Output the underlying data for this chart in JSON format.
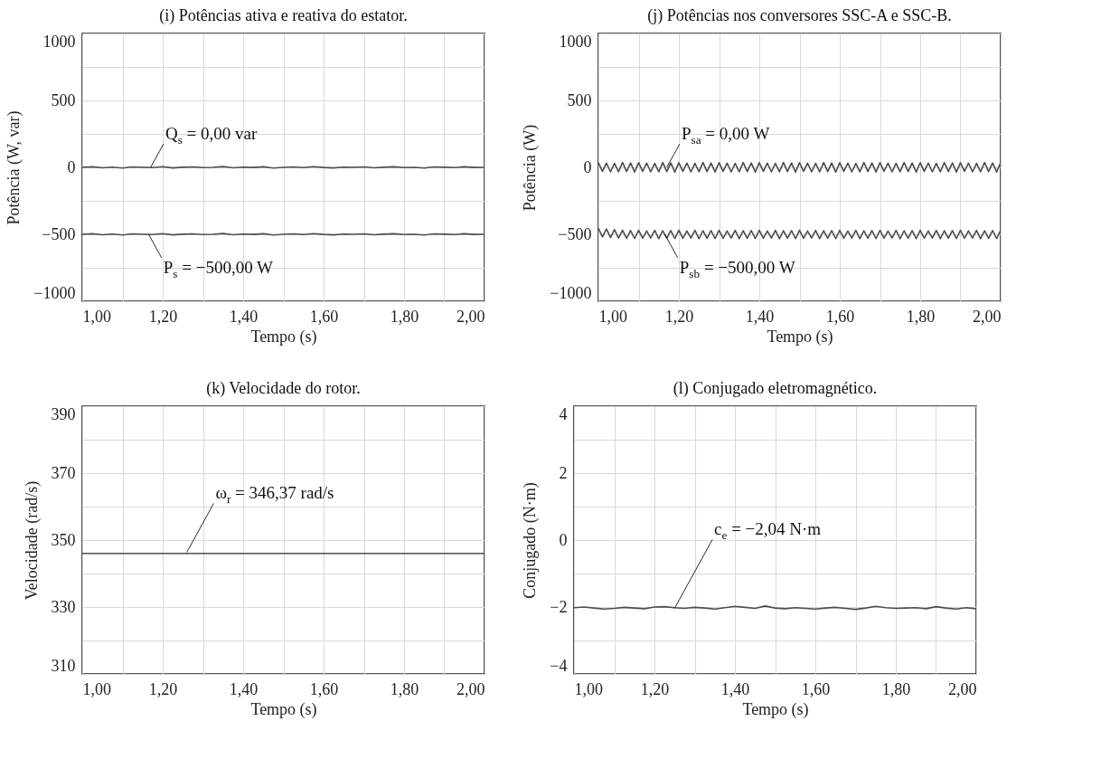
{
  "chart_data": [
    {
      "type": "line",
      "title": "(i) Potências ativa e reativa do estator.",
      "xlabel": "Tempo (s)",
      "ylabel": "Potência (W, var)",
      "x": [
        1.0,
        1.025,
        1.05,
        1.075,
        1.1,
        1.125,
        1.15,
        1.175,
        1.2,
        1.225,
        1.25,
        1.275,
        1.3,
        1.325,
        1.35,
        1.375,
        1.4,
        1.425,
        1.45,
        1.475,
        1.5,
        1.525,
        1.55,
        1.575,
        1.6,
        1.625,
        1.65,
        1.675,
        1.7,
        1.725,
        1.75,
        1.775,
        1.8,
        1.825,
        1.85,
        1.875,
        1.9,
        1.925,
        1.95,
        1.975,
        2.0
      ],
      "series": [
        {
          "color": "#4d4d4d",
          "values": [
            0,
            4,
            -3,
            2,
            -5,
            3,
            0,
            -2,
            5,
            -4,
            1,
            3,
            -2,
            0,
            6,
            -3,
            2,
            -1,
            4,
            -5,
            0,
            3,
            -2,
            5,
            -1,
            -4,
            2,
            0,
            3,
            -3,
            1,
            4,
            -2,
            0,
            -5,
            3,
            1,
            -2,
            4,
            -1,
            0
          ]
        },
        {
          "color": "#4d4d4d",
          "values": [
            -500,
            -496,
            -503,
            -498,
            -505,
            -497,
            -500,
            -502,
            -495,
            -504,
            -499,
            -497,
            -502,
            -500,
            -494,
            -503,
            -498,
            -501,
            -496,
            -505,
            -500,
            -497,
            -502,
            -495,
            -501,
            -504,
            -498,
            -500,
            -497,
            -503,
            -499,
            -496,
            -502,
            -500,
            -505,
            -497,
            -499,
            -502,
            -496,
            -501,
            -500
          ]
        }
      ],
      "annotations": [
        {
          "text": "Q$_{s}$ = 0,00 var",
          "x": 1.17,
          "y": 0
        },
        {
          "text": "P$_{s}$ = −500,00 W",
          "x": 1.165,
          "y": -500
        }
      ],
      "xlim": [
        1,
        2
      ],
      "xticks": [
        {
          "value": 1,
          "label": "1,00"
        },
        {
          "value": 1.1,
          "label": null
        },
        {
          "value": 1.2,
          "label": "1,20"
        },
        {
          "value": 1.3,
          "label": null
        },
        {
          "value": 1.4,
          "label": "1,40"
        },
        {
          "value": 1.5,
          "label": null
        },
        {
          "value": 1.6,
          "label": "1,60"
        },
        {
          "value": 1.7,
          "label": null
        },
        {
          "value": 1.8,
          "label": "1,80"
        },
        {
          "value": 1.9,
          "label": null
        },
        {
          "value": 2,
          "label": "2,00"
        }
      ],
      "ylim": [
        -1000,
        1000
      ],
      "yticks": [
        1000,
        {
          "value": 750,
          "label": null
        },
        500,
        {
          "value": 250,
          "label": null
        },
        0,
        {
          "value": -250,
          "label": null
        },
        -500,
        {
          "value": -750,
          "label": null
        },
        -1000
      ],
      "grid": true
    },
    {
      "type": "line",
      "title": "(j) Potências nos conversores SSC-A e SSC-B.",
      "xlabel": "Tempo (s)",
      "ylabel": "Potência (W)",
      "x": [
        1.0,
        1.01,
        1.02,
        1.03,
        1.04,
        1.05,
        1.06,
        1.07,
        1.08,
        1.09,
        1.1,
        1.11,
        1.12,
        1.13,
        1.14,
        1.15,
        1.16,
        1.17,
        1.18,
        1.19,
        1.2,
        1.21,
        1.22,
        1.23,
        1.24,
        1.25,
        1.26,
        1.27,
        1.28,
        1.29,
        1.3,
        1.31,
        1.32,
        1.33,
        1.34,
        1.35,
        1.36,
        1.37,
        1.38,
        1.39,
        1.4,
        1.41,
        1.42,
        1.43,
        1.44,
        1.45,
        1.46,
        1.47,
        1.48,
        1.49,
        1.5,
        1.51,
        1.52,
        1.53,
        1.54,
        1.55,
        1.56,
        1.57,
        1.58,
        1.59,
        1.6,
        1.61,
        1.62,
        1.63,
        1.64,
        1.65,
        1.66,
        1.67,
        1.68,
        1.69,
        1.7,
        1.71,
        1.72,
        1.73,
        1.74,
        1.75,
        1.76,
        1.77,
        1.78,
        1.79,
        1.8,
        1.81,
        1.82,
        1.83,
        1.84,
        1.85,
        1.86,
        1.87,
        1.88,
        1.89,
        1.9,
        1.91,
        1.92,
        1.93,
        1.94,
        1.95,
        1.96,
        1.97,
        1.98,
        1.99,
        2.0
      ],
      "series": [
        {
          "color": "#4d4d4d",
          "values": [
            35,
            -30,
            32,
            -34,
            30,
            -33,
            36,
            -31,
            33,
            -35,
            35,
            -30,
            32,
            -34,
            30,
            -33,
            36,
            -31,
            33,
            -35,
            35,
            -30,
            32,
            -34,
            30,
            -33,
            36,
            -31,
            33,
            -35,
            35,
            -30,
            32,
            -34,
            30,
            -33,
            36,
            -31,
            33,
            -35,
            35,
            -30,
            32,
            -34,
            30,
            -33,
            36,
            -31,
            33,
            -35,
            35,
            -30,
            32,
            -34,
            30,
            -33,
            36,
            -31,
            33,
            -35,
            35,
            -30,
            32,
            -34,
            30,
            -33,
            36,
            -31,
            33,
            -35,
            35,
            -30,
            32,
            -34,
            30,
            -33,
            36,
            -31,
            33,
            -35,
            35,
            -30,
            32,
            -34,
            30,
            -33,
            36,
            -31,
            33,
            -35,
            35,
            -30,
            32,
            -34,
            30,
            -33,
            36,
            -31,
            33,
            -35,
            35
          ]
        },
        {
          "color": "#4d4d4d",
          "values": [
            -455,
            -520,
            -460,
            -525,
            -465,
            -528,
            -470,
            -530,
            -472,
            -532,
            -470,
            -530,
            -475,
            -528,
            -471,
            -533,
            -473,
            -529,
            -472,
            -532,
            -470,
            -530,
            -475,
            -528,
            -471,
            -533,
            -473,
            -529,
            -472,
            -532,
            -470,
            -530,
            -475,
            -528,
            -471,
            -533,
            -473,
            -529,
            -472,
            -532,
            -470,
            -530,
            -475,
            -528,
            -471,
            -533,
            -473,
            -529,
            -472,
            -532,
            -470,
            -530,
            -475,
            -528,
            -471,
            -533,
            -473,
            -529,
            -472,
            -532,
            -470,
            -530,
            -475,
            -528,
            -471,
            -533,
            -473,
            -529,
            -472,
            -532,
            -470,
            -530,
            -475,
            -528,
            -471,
            -533,
            -473,
            -529,
            -472,
            -532,
            -470,
            -530,
            -475,
            -528,
            -471,
            -533,
            -473,
            -529,
            -472,
            -532,
            -470,
            -530,
            -475,
            -528,
            -471,
            -533,
            -473,
            -529,
            -472,
            -532,
            -470
          ]
        }
      ],
      "annotations": [
        {
          "text": "P$_{sa}$ = 0,00 W",
          "x": 1.17,
          "y": 0
        },
        {
          "text": "P$_{sb}$ = −500,00 W",
          "x": 1.165,
          "y": -500
        }
      ],
      "xlim": [
        1,
        2
      ],
      "xticks": [
        {
          "value": 1,
          "label": "1,00"
        },
        {
          "value": 1.1,
          "label": null
        },
        {
          "value": 1.2,
          "label": "1,20"
        },
        {
          "value": 1.3,
          "label": null
        },
        {
          "value": 1.4,
          "label": "1,40"
        },
        {
          "value": 1.5,
          "label": null
        },
        {
          "value": 1.6,
          "label": "1,60"
        },
        {
          "value": 1.7,
          "label": null
        },
        {
          "value": 1.8,
          "label": "1,80"
        },
        {
          "value": 1.9,
          "label": null
        },
        {
          "value": 2,
          "label": "2,00"
        }
      ],
      "ylim": [
        -1000,
        1000
      ],
      "yticks": [
        1000,
        {
          "value": 750,
          "label": null
        },
        500,
        {
          "value": 250,
          "label": null
        },
        0,
        {
          "value": -250,
          "label": null
        },
        -500,
        {
          "value": -750,
          "label": null
        },
        -1000
      ],
      "grid": true
    },
    {
      "type": "line",
      "title": "(k) Velocidade do rotor.",
      "xlabel": "Tempo (s)",
      "ylabel": "Velocidade (rad/s)",
      "x": [
        1,
        2
      ],
      "series": [
        {
          "color": "#4d4d4d",
          "values": [
            346,
            346
          ]
        }
      ],
      "annotations": [
        {
          "text": "ω$_{r}$ = 346,37 rad/s",
          "x": 1.26,
          "y": 346.37
        }
      ],
      "xlim": [
        1,
        2
      ],
      "xticks": [
        {
          "value": 1,
          "label": "1,00"
        },
        {
          "value": 1.1,
          "label": null
        },
        {
          "value": 1.2,
          "label": "1,20"
        },
        {
          "value": 1.3,
          "label": null
        },
        {
          "value": 1.4,
          "label": "1,40"
        },
        {
          "value": 1.5,
          "label": null
        },
        {
          "value": 1.6,
          "label": "1,60"
        },
        {
          "value": 1.7,
          "label": null
        },
        {
          "value": 1.8,
          "label": "1,80"
        },
        {
          "value": 1.9,
          "label": null
        },
        {
          "value": 2,
          "label": "2,00"
        }
      ],
      "ylim": [
        310,
        390
      ],
      "yticks": [
        390,
        {
          "value": 380,
          "label": null
        },
        370,
        {
          "value": 360,
          "label": null
        },
        350,
        {
          "value": 340,
          "label": null
        },
        330,
        {
          "value": 320,
          "label": null
        },
        310
      ],
      "grid": true
    },
    {
      "type": "line",
      "title": "(l) Conjugado eletromagnético.",
      "xlabel": "Tempo (s)",
      "ylabel": "Conjugado (N·m)",
      "x": [
        1.0,
        1.025,
        1.05,
        1.075,
        1.1,
        1.125,
        1.15,
        1.175,
        1.2,
        1.225,
        1.25,
        1.275,
        1.3,
        1.325,
        1.35,
        1.375,
        1.4,
        1.425,
        1.45,
        1.475,
        1.5,
        1.525,
        1.55,
        1.575,
        1.6,
        1.625,
        1.65,
        1.675,
        1.7,
        1.725,
        1.75,
        1.775,
        1.8,
        1.825,
        1.85,
        1.875,
        1.9,
        1.925,
        1.95,
        1.975,
        2.0
      ],
      "series": [
        {
          "color": "#4d4d4d",
          "values": [
            -2.02,
            -2.0,
            -2.03,
            -2.06,
            -2.04,
            -2.01,
            -2.03,
            -2.05,
            -2.0,
            -1.99,
            -2.02,
            -2.04,
            -2.01,
            -2.03,
            -2.06,
            -2.02,
            -1.98,
            -2.01,
            -2.04,
            -1.97,
            -2.03,
            -2.05,
            -2.02,
            -2.04,
            -2.06,
            -2.03,
            -2.01,
            -2.04,
            -2.07,
            -2.03,
            -1.98,
            -2.02,
            -2.04,
            -2.03,
            -2.02,
            -2.05,
            -1.99,
            -2.03,
            -2.06,
            -2.02,
            -2.05
          ]
        }
      ],
      "annotations": [
        {
          "text": "c$_{e}$ = −2,04 N·m",
          "x": 1.25,
          "y": -2.04
        }
      ],
      "xlim": [
        1,
        2
      ],
      "xticks": [
        {
          "value": 1,
          "label": "1,00"
        },
        {
          "value": 1.1,
          "label": null
        },
        {
          "value": 1.2,
          "label": "1,20"
        },
        {
          "value": 1.3,
          "label": null
        },
        {
          "value": 1.4,
          "label": "1,40"
        },
        {
          "value": 1.5,
          "label": null
        },
        {
          "value": 1.6,
          "label": "1,60"
        },
        {
          "value": 1.7,
          "label": null
        },
        {
          "value": 1.8,
          "label": "1,80"
        },
        {
          "value": 1.9,
          "label": null
        },
        {
          "value": 2,
          "label": "2,00"
        }
      ],
      "ylim": [
        -4,
        4
      ],
      "yticks": [
        4,
        {
          "value": 3,
          "label": null
        },
        2,
        {
          "value": 1,
          "label": null
        },
        0,
        {
          "value": -1,
          "label": null
        },
        -2,
        {
          "value": -3,
          "label": null
        },
        -4
      ],
      "grid": true
    }
  ]
}
